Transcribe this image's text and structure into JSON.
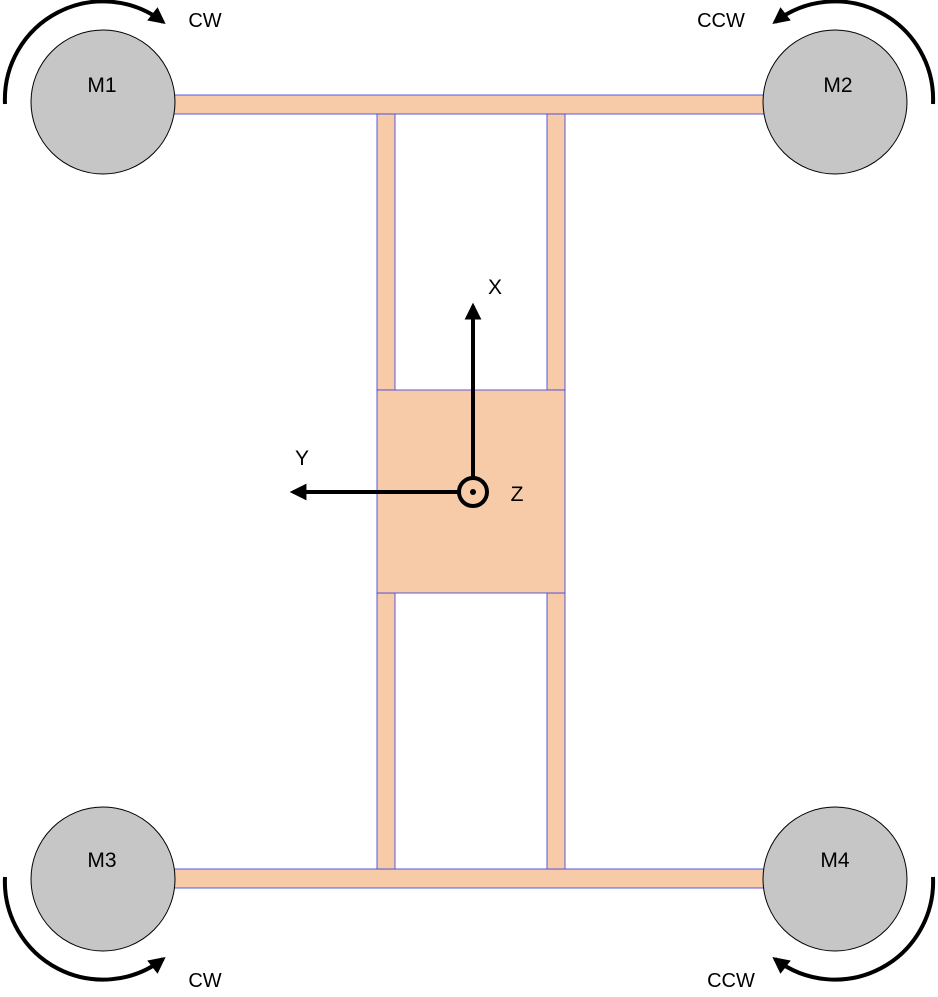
{
  "colors": {
    "frame_fill": "#f8cba8",
    "frame_outline": "#4848e0",
    "motor_fill": "#c6c6c6",
    "ink": "#000000"
  },
  "motors": [
    {
      "id": "m1",
      "label": "M1",
      "direction": "CW"
    },
    {
      "id": "m2",
      "label": "M2",
      "direction": "CCW"
    },
    {
      "id": "m3",
      "label": "M3",
      "direction": "CW"
    },
    {
      "id": "m4",
      "label": "M4",
      "direction": "CCW"
    }
  ],
  "axes": {
    "x_label": "X",
    "y_label": "Y",
    "z_label": "Z"
  }
}
